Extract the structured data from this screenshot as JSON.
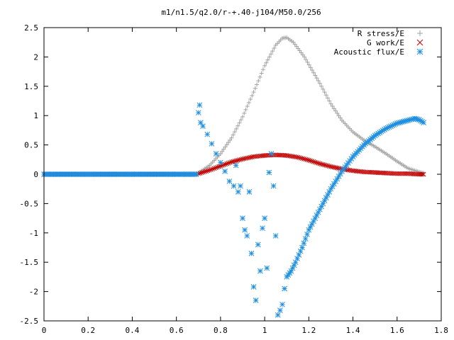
{
  "chart_data": {
    "type": "scatter",
    "title": "m1/n1.5/q2.0/r-+.40-j104/M50.0/256",
    "xlabel": "",
    "ylabel": "",
    "xlim": [
      0,
      1.8
    ],
    "ylim": [
      -2.5,
      2.5
    ],
    "xticks": [
      "0",
      "0.2",
      "0.4",
      "0.6",
      "0.8",
      "1",
      "1.2",
      "1.4",
      "1.6",
      "1.8"
    ],
    "yticks": [
      "2.5",
      "2",
      "1.5",
      "1",
      "0.5",
      "0",
      "-0.5",
      "-1",
      "-1.5",
      "-2",
      "-2.5"
    ],
    "grid": false,
    "legend_position": "top-right",
    "series": [
      {
        "name": "R stress/E",
        "marker": "plus",
        "color": "#a0a0a0",
        "points": [
          [
            0.0,
            0
          ],
          [
            0.1,
            0
          ],
          [
            0.2,
            0
          ],
          [
            0.3,
            0
          ],
          [
            0.4,
            0
          ],
          [
            0.5,
            0
          ],
          [
            0.6,
            0
          ],
          [
            0.69,
            0
          ],
          [
            0.7,
            0.02
          ],
          [
            0.75,
            0.15
          ],
          [
            0.8,
            0.35
          ],
          [
            0.85,
            0.62
          ],
          [
            0.9,
            0.98
          ],
          [
            0.95,
            1.4
          ],
          [
            1.0,
            1.85
          ],
          [
            1.05,
            2.2
          ],
          [
            1.08,
            2.32
          ],
          [
            1.1,
            2.33
          ],
          [
            1.13,
            2.25
          ],
          [
            1.18,
            2.0
          ],
          [
            1.25,
            1.55
          ],
          [
            1.3,
            1.2
          ],
          [
            1.35,
            0.92
          ],
          [
            1.4,
            0.72
          ],
          [
            1.45,
            0.58
          ],
          [
            1.5,
            0.47
          ],
          [
            1.55,
            0.35
          ],
          [
            1.6,
            0.22
          ],
          [
            1.65,
            0.1
          ],
          [
            1.7,
            0.04
          ],
          [
            1.72,
            0.02
          ]
        ]
      },
      {
        "name": "G work/E",
        "marker": "cross",
        "color": "#c00000",
        "points": [
          [
            0.0,
            0
          ],
          [
            0.2,
            0
          ],
          [
            0.4,
            0
          ],
          [
            0.6,
            0
          ],
          [
            0.69,
            0
          ],
          [
            0.7,
            0.01
          ],
          [
            0.75,
            0.07
          ],
          [
            0.8,
            0.14
          ],
          [
            0.85,
            0.21
          ],
          [
            0.9,
            0.26
          ],
          [
            0.95,
            0.3
          ],
          [
            1.0,
            0.32
          ],
          [
            1.05,
            0.33
          ],
          [
            1.1,
            0.32
          ],
          [
            1.15,
            0.29
          ],
          [
            1.2,
            0.24
          ],
          [
            1.25,
            0.18
          ],
          [
            1.3,
            0.13
          ],
          [
            1.35,
            0.09
          ],
          [
            1.4,
            0.06
          ],
          [
            1.45,
            0.04
          ],
          [
            1.5,
            0.03
          ],
          [
            1.55,
            0.02
          ],
          [
            1.6,
            0.01
          ],
          [
            1.65,
            0.01
          ],
          [
            1.7,
            0.0
          ],
          [
            1.72,
            0.0
          ]
        ]
      },
      {
        "name": "Acoustic flux/E",
        "marker": "star",
        "color": "#1e8fe0",
        "points": [
          [
            0.0,
            0
          ],
          [
            0.1,
            0
          ],
          [
            0.2,
            0
          ],
          [
            0.3,
            0
          ],
          [
            0.4,
            0
          ],
          [
            0.5,
            0
          ],
          [
            0.6,
            0
          ],
          [
            0.69,
            0
          ],
          [
            0.7,
            1.05
          ],
          [
            0.705,
            1.18
          ],
          [
            0.71,
            0.88
          ],
          [
            0.72,
            0.82
          ],
          [
            0.74,
            0.68
          ],
          [
            0.76,
            0.52
          ],
          [
            0.78,
            0.35
          ],
          [
            0.8,
            0.2
          ],
          [
            0.82,
            0.05
          ],
          [
            0.84,
            -0.12
          ],
          [
            0.86,
            -0.2
          ],
          [
            0.87,
            0.15
          ],
          [
            0.88,
            -0.3
          ],
          [
            0.89,
            -0.2
          ],
          [
            0.9,
            -0.75
          ],
          [
            0.91,
            -0.95
          ],
          [
            0.92,
            -1.05
          ],
          [
            0.93,
            -0.3
          ],
          [
            0.94,
            -1.35
          ],
          [
            0.95,
            -1.92
          ],
          [
            0.96,
            -2.15
          ],
          [
            0.97,
            -1.2
          ],
          [
            0.98,
            -1.65
          ],
          [
            0.99,
            -0.92
          ],
          [
            1.0,
            -0.75
          ],
          [
            1.01,
            -1.6
          ],
          [
            1.02,
            0.03
          ],
          [
            1.03,
            0.35
          ],
          [
            1.04,
            -0.2
          ],
          [
            1.05,
            -1.05
          ],
          [
            1.06,
            -2.4
          ],
          [
            1.07,
            -2.32
          ],
          [
            1.08,
            -2.22
          ],
          [
            1.09,
            -1.95
          ],
          [
            1.1,
            -1.75
          ],
          [
            1.12,
            -1.65
          ],
          [
            1.14,
            -1.5
          ],
          [
            1.17,
            -1.25
          ],
          [
            1.2,
            -0.95
          ],
          [
            1.25,
            -0.6
          ],
          [
            1.3,
            -0.25
          ],
          [
            1.35,
            0.05
          ],
          [
            1.4,
            0.3
          ],
          [
            1.45,
            0.5
          ],
          [
            1.5,
            0.66
          ],
          [
            1.55,
            0.78
          ],
          [
            1.6,
            0.87
          ],
          [
            1.65,
            0.92
          ],
          [
            1.68,
            0.95
          ],
          [
            1.7,
            0.93
          ],
          [
            1.72,
            0.88
          ]
        ]
      }
    ]
  }
}
